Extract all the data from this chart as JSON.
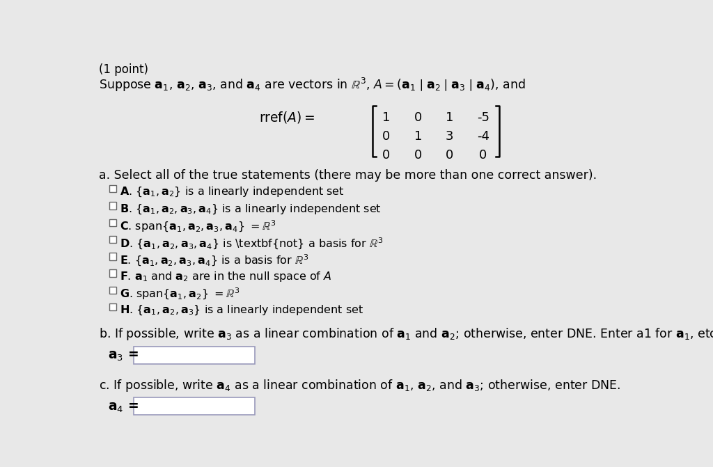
{
  "bg_color": "#e8e8e8",
  "text_color": "#000000",
  "matrix_str": [
    [
      "1",
      "0",
      "1",
      "-5"
    ],
    [
      "0",
      "1",
      "3",
      "-4"
    ],
    [
      "0",
      "0",
      "0",
      "0"
    ]
  ],
  "input_box_color": "#ffffff",
  "input_box_border": "#9999bb",
  "checkbox_edge": "#666666"
}
